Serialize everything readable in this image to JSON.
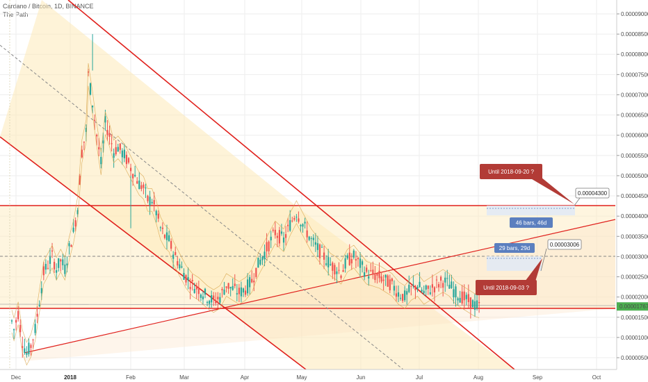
{
  "header": {
    "symbol_line": "Cardano / Bitcoin, 1D, BINANCE",
    "indicator": "The Path"
  },
  "colors": {
    "up": "#26a69a",
    "down": "#ef5350",
    "trendline": "#e0201c",
    "channel_fill": "#fde9b8",
    "band": "#d8a54a",
    "price_tag": "#4caf50",
    "measure_box": "#5b7fbf",
    "callout": "#b23b36"
  },
  "chart_data": {
    "type": "candlestick",
    "title": "Cardano / Bitcoin, 1D, BINANCE",
    "ylim": [
      3e-07,
      9.2e-06
    ],
    "y_ticks": [
      "0.00000500",
      "0.00001000",
      "0.00001500",
      "0.00002000",
      "0.00002500",
      "0.00003000",
      "0.00003500",
      "0.00004000",
      "0.00004500",
      "0.00005000",
      "0.00005500",
      "0.00006000",
      "0.00006500",
      "0.00007000",
      "0.00007500",
      "0.00008000",
      "0.00008500",
      "0.00009000"
    ],
    "x_ticks": [
      {
        "label": "Dec",
        "bold": false
      },
      {
        "label": "2018",
        "bold": true
      },
      {
        "label": "Feb",
        "bold": false
      },
      {
        "label": "Mar",
        "bold": false
      },
      {
        "label": "Apr",
        "bold": false
      },
      {
        "label": "May",
        "bold": false
      },
      {
        "label": "Jun",
        "bold": false
      },
      {
        "label": "Jul",
        "bold": false
      },
      {
        "label": "Aug",
        "bold": false
      },
      {
        "label": "Sep",
        "bold": false
      },
      {
        "label": "Oct",
        "bold": false
      }
    ],
    "last_price": "0.00001767",
    "grid": true,
    "annotations": {
      "horizontal_levels": [
        4.3e-05,
        3.01e-05,
        1.767e-05
      ],
      "measure_1": {
        "text": "46 bars, 46d",
        "target": "0.00004300"
      },
      "measure_2": {
        "text": "29 bars, 29d",
        "target": "0.00003006"
      },
      "callout_1": "Until 2018-09-20 ?",
      "callout_2": "Until 2018-09-03 ?"
    },
    "price_path": [
      [
        0,
        1.4
      ],
      [
        1,
        1.2
      ],
      [
        3,
        1.6
      ],
      [
        5,
        0.9
      ],
      [
        7,
        0.6
      ],
      [
        9,
        0.8
      ],
      [
        11,
        1.2
      ],
      [
        13,
        1.9
      ],
      [
        15,
        2.6
      ],
      [
        17,
        2.8
      ],
      [
        19,
        3.0
      ],
      [
        21,
        2.7
      ],
      [
        23,
        2.9
      ],
      [
        25,
        2.7
      ],
      [
        27,
        3.2
      ],
      [
        29,
        3.6
      ],
      [
        31,
        4.2
      ],
      [
        33,
        5.6
      ],
      [
        35,
        6.1
      ],
      [
        36,
        7.5
      ],
      [
        38,
        6.8
      ],
      [
        40,
        6.0
      ],
      [
        42,
        5.3
      ],
      [
        44,
        6.3
      ],
      [
        46,
        6.0
      ],
      [
        48,
        5.6
      ],
      [
        50,
        5.7
      ],
      [
        53,
        5.5
      ],
      [
        56,
        5.2
      ],
      [
        60,
        4.8
      ],
      [
        62,
        4.7
      ],
      [
        64,
        4.4
      ],
      [
        66,
        4.4
      ],
      [
        68,
        4.1
      ],
      [
        70,
        3.7
      ],
      [
        72,
        3.5
      ],
      [
        74,
        3.4
      ],
      [
        76,
        3.1
      ],
      [
        79,
        2.8
      ],
      [
        82,
        2.5
      ],
      [
        85,
        2.3
      ],
      [
        88,
        2.2
      ],
      [
        92,
        2.0
      ],
      [
        95,
        1.9
      ],
      [
        98,
        2.0
      ],
      [
        101,
        2.3
      ],
      [
        104,
        2.2
      ],
      [
        107,
        2.1
      ],
      [
        110,
        2.2
      ],
      [
        113,
        2.4
      ],
      [
        116,
        2.8
      ],
      [
        120,
        3.2
      ],
      [
        124,
        3.6
      ],
      [
        128,
        3.4
      ],
      [
        131,
        3.8
      ],
      [
        134,
        4.1
      ],
      [
        136,
        3.9
      ],
      [
        138,
        3.7
      ],
      [
        141,
        3.4
      ],
      [
        144,
        3.2
      ],
      [
        147,
        3.0
      ],
      [
        150,
        2.8
      ],
      [
        153,
        2.7
      ],
      [
        155,
        2.6
      ],
      [
        158,
        2.9
      ],
      [
        161,
        3.0
      ],
      [
        164,
        2.8
      ],
      [
        167,
        2.6
      ],
      [
        170,
        2.55
      ],
      [
        173,
        2.5
      ],
      [
        176,
        2.4
      ],
      [
        179,
        2.3
      ],
      [
        182,
        2.1
      ],
      [
        185,
        2.0
      ],
      [
        188,
        2.2
      ],
      [
        191,
        2.3
      ],
      [
        194,
        2.1
      ],
      [
        197,
        2.2
      ],
      [
        200,
        2.3
      ],
      [
        203,
        2.4
      ],
      [
        206,
        2.3
      ],
      [
        209,
        2.1
      ],
      [
        212,
        2.0
      ],
      [
        215,
        1.9
      ],
      [
        218,
        1.8
      ],
      [
        221,
        1.75
      ]
    ]
  }
}
